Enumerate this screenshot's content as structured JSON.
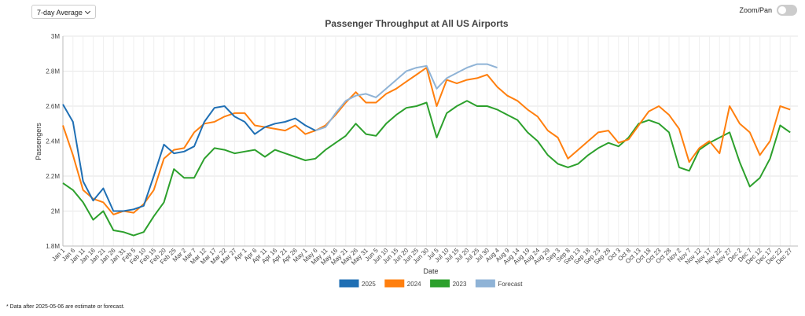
{
  "control": {
    "dropdown": "7-day Average",
    "toggle": "Zoom/Pan"
  },
  "footnote": "* Data after 2025-05-06 are estimate or forecast.",
  "chart_data": {
    "type": "line",
    "title": "Passenger Throughput at All US Airports",
    "x_label": "Date",
    "y_label": "Passengers",
    "grid": true,
    "categories": [
      "Jan 1",
      "Jan 6",
      "Jan 11",
      "Jan 16",
      "Jan 21",
      "Jan 26",
      "Jan 31",
      "Feb 5",
      "Feb 10",
      "Feb 15",
      "Feb 20",
      "Feb 25",
      "Mar 2",
      "Mar 7",
      "Mar 12",
      "Mar 17",
      "Mar 22",
      "Mar 27",
      "Apr 1",
      "Apr 6",
      "Apr 11",
      "Apr 16",
      "Apr 21",
      "Apr 26",
      "May 1",
      "May 6",
      "May 11",
      "May 16",
      "May 21",
      "May 26",
      "May 31",
      "Jun 5",
      "Jun 10",
      "Jun 15",
      "Jun 20",
      "Jun 25",
      "Jun 30",
      "Jul 5",
      "Jul 10",
      "Jul 15",
      "Jul 20",
      "Jul 25",
      "Jul 30",
      "Aug 4",
      "Aug 9",
      "Aug 14",
      "Aug 19",
      "Aug 24",
      "Aug 29",
      "Sep 3",
      "Sep 8",
      "Sep 13",
      "Sep 18",
      "Sep 23",
      "Sep 28",
      "Oct 3",
      "Oct 8",
      "Oct 13",
      "Oct 18",
      "Oct 23",
      "Oct 28",
      "Nov 2",
      "Nov 7",
      "Nov 12",
      "Nov 17",
      "Nov 22",
      "Nov 27",
      "Dec 2",
      "Dec 7",
      "Dec 12",
      "Dec 17",
      "Dec 22",
      "Dec 27"
    ],
    "ylim": [
      1800000,
      3000000
    ],
    "yticks": [
      {
        "value": 1800000,
        "label": "1.8M"
      },
      {
        "value": 2000000,
        "label": "2M"
      },
      {
        "value": 2200000,
        "label": "2.2M"
      },
      {
        "value": 2400000,
        "label": "2.4M"
      },
      {
        "value": 2600000,
        "label": "2.6M"
      },
      {
        "value": 2800000,
        "label": "2.8M"
      },
      {
        "value": 3000000,
        "label": "3M"
      }
    ],
    "series": [
      {
        "name": "2025",
        "color": "#1f6fb4",
        "values": [
          2610000,
          2510000,
          2170000,
          2060000,
          2130000,
          2000000,
          2000000,
          2010000,
          2030000,
          2200000,
          2380000,
          2330000,
          2340000,
          2370000,
          2510000,
          2590000,
          2600000,
          2540000,
          2510000,
          2440000,
          2480000,
          2500000,
          2510000,
          2530000,
          2490000,
          2460000,
          null,
          null,
          null,
          null,
          null,
          null,
          null,
          null,
          null,
          null,
          null,
          null,
          null,
          null,
          null,
          null,
          null,
          null,
          null,
          null,
          null,
          null,
          null,
          null,
          null,
          null,
          null,
          null,
          null,
          null,
          null,
          null,
          null,
          null,
          null,
          null,
          null,
          null,
          null,
          null,
          null,
          null,
          null,
          null,
          null,
          null,
          null
        ]
      },
      {
        "name": "2024",
        "color": "#ff7f0e",
        "values": [
          2490000,
          2320000,
          2120000,
          2070000,
          2050000,
          1980000,
          2000000,
          1990000,
          2040000,
          2120000,
          2300000,
          2350000,
          2360000,
          2450000,
          2500000,
          2510000,
          2540000,
          2560000,
          2560000,
          2490000,
          2480000,
          2470000,
          2460000,
          2490000,
          2440000,
          2460000,
          2490000,
          2550000,
          2620000,
          2680000,
          2620000,
          2620000,
          2670000,
          2700000,
          2740000,
          2780000,
          2820000,
          2600000,
          2750000,
          2730000,
          2750000,
          2760000,
          2780000,
          2710000,
          2660000,
          2630000,
          2580000,
          2540000,
          2460000,
          2420000,
          2300000,
          2350000,
          2400000,
          2450000,
          2460000,
          2390000,
          2410000,
          2490000,
          2570000,
          2600000,
          2550000,
          2470000,
          2280000,
          2360000,
          2400000,
          2330000,
          2600000,
          2500000,
          2450000,
          2320000,
          2400000,
          2600000,
          2580000
        ]
      },
      {
        "name": "2023",
        "color": "#2ca02c",
        "values": [
          2160000,
          2120000,
          2050000,
          1950000,
          2000000,
          1890000,
          1880000,
          1860000,
          1880000,
          1970000,
          2050000,
          2240000,
          2190000,
          2190000,
          2300000,
          2360000,
          2350000,
          2330000,
          2340000,
          2350000,
          2310000,
          2350000,
          2330000,
          2310000,
          2290000,
          2300000,
          2350000,
          2390000,
          2430000,
          2500000,
          2440000,
          2430000,
          2500000,
          2550000,
          2590000,
          2600000,
          2620000,
          2420000,
          2560000,
          2600000,
          2630000,
          2600000,
          2600000,
          2580000,
          2550000,
          2520000,
          2450000,
          2400000,
          2320000,
          2270000,
          2250000,
          2270000,
          2320000,
          2360000,
          2390000,
          2370000,
          2420000,
          2500000,
          2520000,
          2500000,
          2450000,
          2250000,
          2230000,
          2350000,
          2390000,
          2420000,
          2450000,
          2280000,
          2140000,
          2190000,
          2300000,
          2490000,
          2450000
        ]
      },
      {
        "name": "Forecast",
        "color": "#8fb3d6",
        "values": [
          null,
          null,
          null,
          null,
          null,
          null,
          null,
          null,
          null,
          null,
          null,
          null,
          null,
          null,
          null,
          null,
          null,
          null,
          null,
          null,
          null,
          null,
          null,
          null,
          null,
          2460000,
          2480000,
          2560000,
          2630000,
          2660000,
          2670000,
          2650000,
          2700000,
          2750000,
          2800000,
          2820000,
          2830000,
          2700000,
          2760000,
          2790000,
          2820000,
          2840000,
          2840000,
          2820000,
          null,
          null,
          null,
          null,
          null,
          null,
          null,
          null,
          null,
          null,
          null,
          null,
          null,
          null,
          null,
          null,
          null,
          null,
          null,
          null,
          null,
          null,
          null,
          null,
          null,
          null,
          null,
          null,
          null
        ]
      }
    ]
  }
}
